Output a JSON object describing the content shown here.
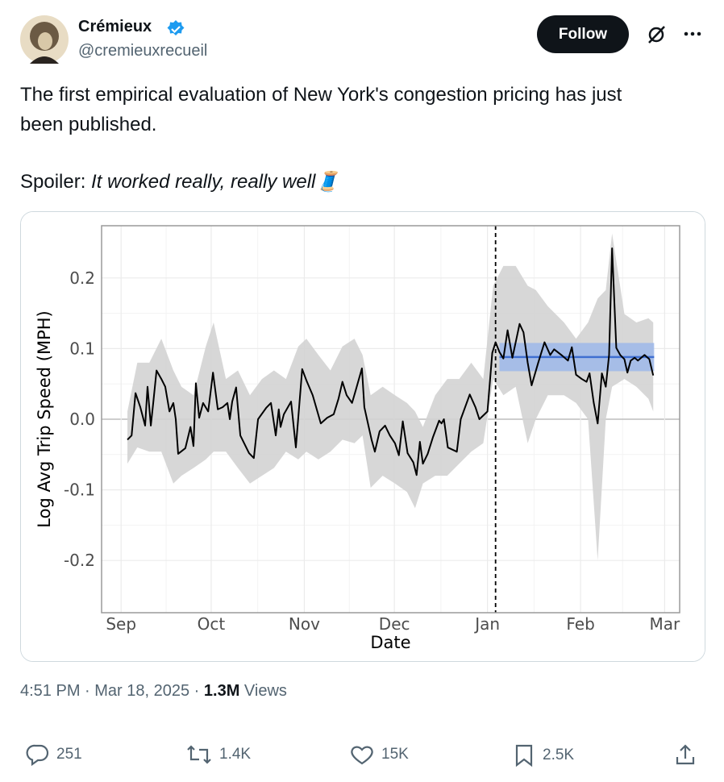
{
  "author": {
    "name": "Crémieux",
    "handle": "@cremieuxrecueil"
  },
  "follow_button": "Follow",
  "text": {
    "line1": "The first empirical evaluation of New York's congestion pricing has just",
    "line2": "been published.",
    "spoiler_label": "Spoiler:",
    "spoiler_text": "It worked really, really well🧵"
  },
  "chart_data": {
    "type": "line",
    "x_label": "Date",
    "y_label": "Log Avg Trip Speed (MPH)",
    "xlim": [
      -6.5,
      186
    ],
    "ylim": [
      -0.274,
      0.274
    ],
    "xticks": [
      {
        "value": 0,
        "label": "Sep"
      },
      {
        "value": 30,
        "label": "Oct"
      },
      {
        "value": 61,
        "label": "Nov"
      },
      {
        "value": 91,
        "label": "Dec"
      },
      {
        "value": 122,
        "label": "Jan"
      },
      {
        "value": 153,
        "label": "Feb"
      },
      {
        "value": 181,
        "label": "Mar"
      }
    ],
    "yticks": [
      -0.2,
      -0.1,
      {
        "value": 0,
        "label": "0.0"
      },
      0.1,
      0.2
    ],
    "grid": true,
    "x": [
      2.1,
      3.5,
      4.8,
      6.4,
      8.0,
      8.8,
      9.9,
      10.7,
      11.8,
      13.4,
      14.7,
      16.1,
      17.4,
      18.2,
      19.0,
      21.4,
      23.1,
      24.1,
      24.9,
      26.0,
      27.3,
      29.0,
      30.6,
      32.2,
      33.8,
      35.4,
      36.2,
      37.0,
      38.3,
      39.7,
      42.6,
      44.2,
      45.6,
      48.3,
      49.9,
      51.5,
      52.5,
      53.1,
      54.2,
      56.6,
      58.2,
      60.3,
      61.7,
      63.8,
      66.5,
      68.6,
      70.8,
      72.4,
      73.7,
      75.1,
      76.9,
      78.0,
      80.2,
      81.0,
      83.4,
      84.5,
      86.1,
      87.9,
      89.5,
      91.2,
      92.5,
      93.8,
      95.4,
      97.3,
      98.4,
      99.5,
      100.5,
      102.1,
      103.8,
      105.9,
      106.7,
      107.5,
      108.8,
      111.8,
      113.1,
      116.1,
      118.0,
      119.3,
      122.0,
      123.6,
      124.7,
      126.0,
      127.3,
      128.7,
      130.3,
      131.4,
      132.7,
      134.0,
      135.4,
      136.7,
      138.9,
      141.0,
      142.9,
      144.2,
      146.6,
      148.8,
      150.1,
      151.5,
      153.4,
      155.0,
      156.0,
      157.4,
      158.7,
      160.1,
      161.4,
      162.5,
      163.5,
      164.9,
      166.2,
      167.6,
      168.6,
      169.7,
      171.0,
      172.1,
      174.3,
      175.9,
      177.2
    ],
    "values": [
      -0.029,
      -0.023,
      0.037,
      0.017,
      -0.009,
      0.046,
      -0.009,
      0.023,
      0.069,
      0.057,
      0.046,
      0.011,
      0.023,
      0,
      -0.049,
      -0.041,
      -0.011,
      -0.038,
      0.051,
      0.002,
      0.023,
      0.011,
      0.066,
      0.014,
      0.017,
      0.023,
      0,
      0.025,
      0.045,
      -0.023,
      -0.048,
      -0.055,
      0,
      0.016,
      0.023,
      -0.023,
      0.014,
      -0.011,
      0.007,
      0.025,
      -0.04,
      0.071,
      0.055,
      0.034,
      -0.006,
      0.002,
      0.007,
      0.029,
      0.053,
      0.034,
      0.023,
      0.039,
      0.072,
      0.017,
      -0.029,
      -0.046,
      -0.017,
      -0.009,
      -0.023,
      -0.034,
      -0.051,
      -0.003,
      -0.048,
      -0.061,
      -0.079,
      -0.032,
      -0.063,
      -0.049,
      -0.026,
      -0.002,
      -0.006,
      0,
      -0.04,
      -0.046,
      0,
      0.035,
      0.017,
      0,
      0.011,
      0.094,
      0.109,
      0.095,
      0.086,
      0.126,
      0.087,
      0.109,
      0.135,
      0.123,
      0.08,
      0.048,
      0.08,
      0.109,
      0.091,
      0.099,
      0.091,
      0.083,
      0.102,
      0.063,
      0.057,
      0.053,
      0.065,
      0.023,
      -0.006,
      0.065,
      0.046,
      0.091,
      0.242,
      0.101,
      0.091,
      0.085,
      0.066,
      0.083,
      0.087,
      0.083,
      0.091,
      0.085,
      0.062
    ],
    "color": "#000000",
    "ci_x": [
      2.1,
      5.4,
      9.4,
      13.4,
      17.4,
      20.1,
      24.1,
      28.2,
      30.8,
      34.9,
      38.9,
      42.9,
      46.9,
      50.9,
      54.9,
      59.0,
      61.7,
      65.7,
      69.7,
      73.7,
      77.7,
      80.4,
      83.1,
      87.1,
      91.2,
      95.2,
      97.9,
      100.5,
      104.6,
      108.6,
      112.6,
      116.6,
      120.6,
      123.9,
      127.3,
      131.4,
      135.4,
      138.1,
      142.1,
      147.5,
      151.5,
      155.5,
      158.7,
      161.4,
      163.5,
      167.6,
      171.6,
      175.6,
      177.2
    ],
    "ci_upper": [
      0.011,
      0.08,
      0.08,
      0.114,
      0.069,
      0.046,
      0.034,
      0.103,
      0.137,
      0.057,
      0.069,
      0.034,
      0.057,
      0.069,
      0.057,
      0.103,
      0.114,
      0.091,
      0.069,
      0.103,
      0.114,
      0.091,
      0.034,
      0.046,
      0.034,
      0.023,
      0.011,
      -0.011,
      0.034,
      0.057,
      0.057,
      0.08,
      0.057,
      0.189,
      0.217,
      0.217,
      0.189,
      0.183,
      0.16,
      0.137,
      0.114,
      0.137,
      0.171,
      0.183,
      0.263,
      0.149,
      0.137,
      0.143,
      0.137
    ],
    "ci_lower": [
      -0.063,
      -0.04,
      -0.046,
      -0.046,
      -0.091,
      -0.08,
      -0.069,
      -0.057,
      -0.046,
      -0.046,
      -0.069,
      -0.091,
      -0.08,
      -0.069,
      -0.046,
      -0.057,
      -0.046,
      -0.057,
      -0.046,
      -0.029,
      -0.034,
      -0.023,
      -0.097,
      -0.08,
      -0.091,
      -0.103,
      -0.126,
      -0.091,
      -0.08,
      -0.08,
      -0.063,
      -0.046,
      -0.034,
      0.057,
      0.034,
      0.046,
      -0.034,
      0,
      0.034,
      0.034,
      0.023,
      0,
      -0.2,
      0,
      0.046,
      0.057,
      0.046,
      0.029,
      0.011
    ],
    "ci_color": "#d3d3d3",
    "event_x": 124.7,
    "fit": {
      "x_start": 126,
      "x_end": 177.5,
      "value": 0.088,
      "lower": 0.068,
      "upper": 0.108,
      "color": "#3f6fd1",
      "band_color": "#9db8ea"
    }
  },
  "meta": {
    "time": "4:51 PM · Mar 18, 2025 ·",
    "views": "1.3M",
    "views_label": "Views"
  },
  "actions": {
    "replies": "251",
    "reposts": "1.4K",
    "likes": "15K",
    "bookmarks": "2.5K"
  }
}
